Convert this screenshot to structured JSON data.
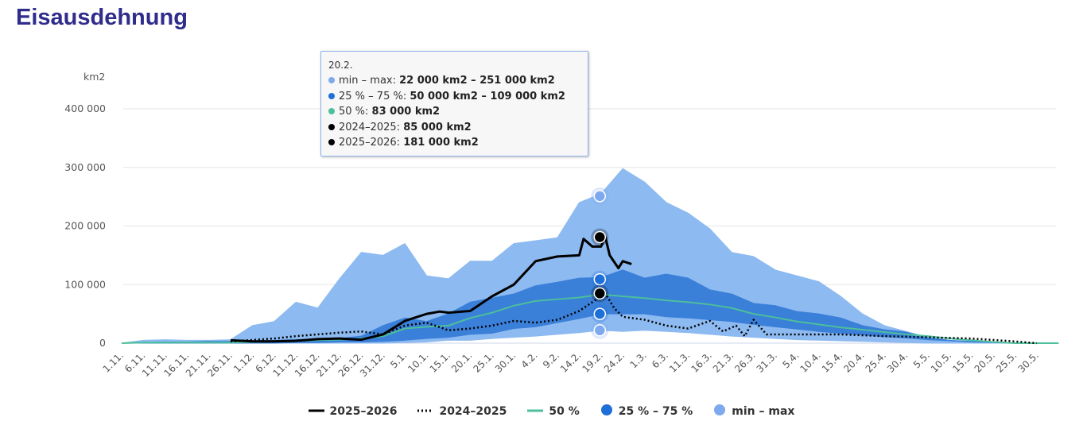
{
  "title": "Eisausdehnung",
  "tooltip": {
    "date": "20.2.",
    "rows": [
      {
        "label": "min – max: ",
        "value": "22 000 km2 – 251 000 km2",
        "color": "#7ea9ee"
      },
      {
        "label": "25 % – 75 %: ",
        "value": "50 000 km2 – 109 000 km2",
        "color": "#1f6fd8"
      },
      {
        "label": "50 %: ",
        "value": "83 000 km2",
        "color": "#4cbf9c"
      },
      {
        "label": "2024–2025: ",
        "value": "85 000 km2",
        "color": "#000000"
      },
      {
        "label": "2025–2026: ",
        "value": "181 000 km2",
        "color": "#000000"
      }
    ]
  },
  "legend": [
    {
      "label": "2025–2026",
      "symbol": "solid-line"
    },
    {
      "label": "2024–2025",
      "symbol": "dotted-line"
    },
    {
      "label": "50 %",
      "symbol": "green-line"
    },
    {
      "label": "25 % – 75 %",
      "symbol": "dark-dot"
    },
    {
      "label": "min – max",
      "symbol": "light-dot"
    }
  ],
  "chart_data": {
    "type": "area",
    "title": "Eisausdehnung",
    "ylabel": "km2",
    "ylim": [
      0,
      400000
    ],
    "yticks": [
      0,
      100000,
      200000,
      300000,
      400000
    ],
    "ytick_labels": [
      "0",
      "100 000",
      "200 000",
      "300 000",
      "400 000"
    ],
    "x_unit": "days since 1.11.",
    "categories": [
      "1.11.",
      "6.11.",
      "11.11.",
      "16.11.",
      "21.11.",
      "26.11.",
      "1.12.",
      "6.12.",
      "11.12.",
      "16.12.",
      "21.12.",
      "26.12.",
      "31.12.",
      "5.1.",
      "10.1.",
      "15.1.",
      "20.1.",
      "25.1.",
      "30.1.",
      "4.2.",
      "9.2.",
      "14.2.",
      "19.2.",
      "24.2.",
      "1.3.",
      "6.3.",
      "11.3.",
      "16.3.",
      "21.3.",
      "26.3.",
      "31.3.",
      "5.4.",
      "10.4.",
      "15.4.",
      "20.4.",
      "25.4.",
      "30.4.",
      "5.5.",
      "10.5.",
      "15.5.",
      "20.5.",
      "25.5.",
      "30.5."
    ],
    "category_days": [
      0,
      5,
      10,
      15,
      20,
      25,
      30,
      35,
      40,
      45,
      50,
      55,
      60,
      65,
      70,
      75,
      80,
      85,
      90,
      95,
      100,
      105,
      110,
      115,
      120,
      125,
      130,
      135,
      140,
      145,
      150,
      155,
      160,
      165,
      170,
      175,
      180,
      185,
      190,
      195,
      200,
      205,
      210
    ],
    "value_unit": "thousand km2",
    "min": [
      0,
      0,
      0,
      0,
      0,
      0,
      0,
      0,
      0,
      0,
      0,
      0,
      0,
      1,
      2,
      5,
      5,
      8,
      10,
      12,
      15,
      18,
      22,
      20,
      22,
      20,
      18,
      15,
      12,
      10,
      8,
      6,
      5,
      4,
      3,
      2,
      1,
      0,
      0,
      0,
      0,
      0,
      0
    ],
    "max": [
      0,
      5,
      6,
      5,
      5,
      6,
      30,
      37,
      70,
      60,
      110,
      155,
      150,
      170,
      115,
      110,
      140,
      140,
      170,
      175,
      180,
      240,
      255,
      298,
      275,
      240,
      222,
      195,
      155,
      148,
      125,
      115,
      105,
      80,
      50,
      30,
      20,
      10,
      5,
      2,
      0,
      0,
      0
    ],
    "p25": [
      0,
      0,
      0,
      0,
      0,
      0,
      0,
      0,
      1,
      1,
      2,
      2,
      3,
      5,
      8,
      10,
      15,
      17,
      25,
      28,
      35,
      42,
      50,
      50,
      50,
      45,
      43,
      40,
      37,
      32,
      28,
      24,
      20,
      17,
      14,
      11,
      9,
      6,
      4,
      2,
      1,
      0,
      0
    ],
    "p75": [
      0,
      1,
      2,
      2,
      3,
      3,
      4,
      5,
      6,
      7,
      8,
      12,
      30,
      43,
      37,
      50,
      70,
      77,
      84,
      98,
      104,
      111,
      112,
      125,
      111,
      118,
      111,
      91,
      84,
      68,
      64,
      54,
      50,
      43,
      30,
      23,
      19,
      9,
      5,
      3,
      1,
      0,
      0
    ],
    "median": [
      0,
      1,
      1,
      1,
      1,
      1,
      2,
      3,
      4,
      5,
      6,
      8,
      12,
      25,
      28,
      30,
      43,
      52,
      64,
      72,
      75,
      78,
      83,
      80,
      77,
      73,
      70,
      66,
      60,
      50,
      44,
      37,
      32,
      27,
      23,
      19,
      15,
      12,
      8,
      5,
      2,
      0,
      0
    ],
    "series": [
      {
        "name": "2025–2026",
        "points": [
          [
            25,
            5
          ],
          [
            30,
            3
          ],
          [
            35,
            3
          ],
          [
            40,
            4
          ],
          [
            45,
            7
          ],
          [
            50,
            8
          ],
          [
            55,
            6
          ],
          [
            60,
            15
          ],
          [
            65,
            38
          ],
          [
            70,
            50
          ],
          [
            73,
            54
          ],
          [
            75,
            52
          ],
          [
            80,
            55
          ],
          [
            85,
            80
          ],
          [
            90,
            100
          ],
          [
            95,
            140
          ],
          [
            100,
            148
          ],
          [
            105,
            150
          ],
          [
            106,
            178
          ],
          [
            108,
            165
          ],
          [
            110,
            165
          ],
          [
            111,
            181
          ],
          [
            112,
            150
          ],
          [
            114,
            128
          ],
          [
            115,
            140
          ],
          [
            117,
            135
          ]
        ]
      },
      {
        "name": "2024–2025",
        "points": [
          [
            25,
            3
          ],
          [
            35,
            8
          ],
          [
            40,
            12
          ],
          [
            45,
            15
          ],
          [
            50,
            18
          ],
          [
            55,
            20
          ],
          [
            60,
            15
          ],
          [
            65,
            30
          ],
          [
            70,
            35
          ],
          [
            75,
            22
          ],
          [
            80,
            25
          ],
          [
            85,
            30
          ],
          [
            90,
            38
          ],
          [
            95,
            35
          ],
          [
            100,
            40
          ],
          [
            105,
            55
          ],
          [
            111,
            85
          ],
          [
            113,
            60
          ],
          [
            115,
            45
          ],
          [
            120,
            40
          ],
          [
            125,
            30
          ],
          [
            130,
            25
          ],
          [
            135,
            38
          ],
          [
            138,
            20
          ],
          [
            141,
            30
          ],
          [
            143,
            12
          ],
          [
            145,
            40
          ],
          [
            148,
            15
          ],
          [
            155,
            15
          ],
          [
            165,
            15
          ],
          [
            175,
            12
          ],
          [
            185,
            10
          ],
          [
            195,
            8
          ],
          [
            205,
            3
          ],
          [
            210,
            0
          ]
        ]
      }
    ],
    "hover_day": 111,
    "hover_values": {
      "min": 22,
      "max": 251,
      "p25": 50,
      "p75": 109,
      "median": 83,
      "2024–2025": 85,
      "2025–2026": 181
    },
    "colors": {
      "minmax": "#8dbaf0",
      "band": "#3a7fd8",
      "median": "#4cbf9c",
      "line": "#000000"
    },
    "legend_position": "bottom"
  }
}
